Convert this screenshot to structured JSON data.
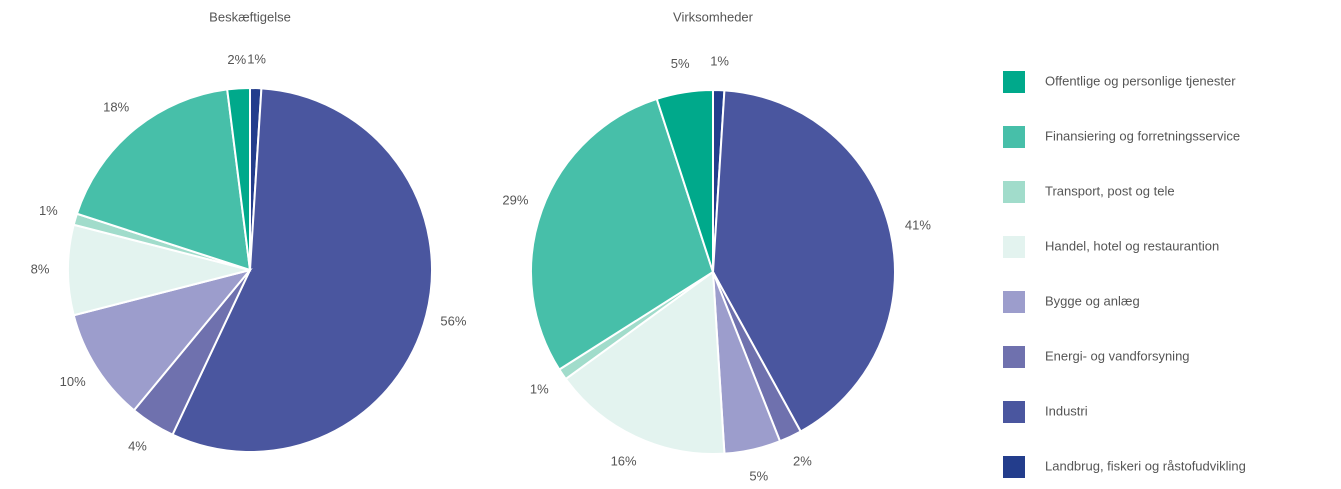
{
  "chart_data": {
    "type": "pie",
    "categories": [
      "Offentlige og personlige tjenester",
      "Finansiering og forretningsservice",
      "Transport, post og tele",
      "Handel, hotel og restaurantion",
      "Bygge og anlæg",
      "Energi- og vandforsyning",
      "Industri",
      "Landbrug, fiskeri og råstofudvikling"
    ],
    "colors": [
      "#00a98b",
      "#47bfa9",
      "#a1dccb",
      "#e3f3ef",
      "#9c9dcc",
      "#6f71ae",
      "#4a569f",
      "#233d8c"
    ],
    "series": [
      {
        "name": "Beskæftigelse",
        "values": [
          2,
          18,
          1,
          8,
          10,
          4,
          56,
          1
        ],
        "value_labels": [
          "2%",
          "18%",
          "1%",
          "8%",
          "10%",
          "4%",
          "56%",
          "1%"
        ]
      },
      {
        "name": "Virksomheder",
        "values": [
          5,
          29,
          1,
          16,
          5,
          2,
          41,
          1
        ],
        "value_labels": [
          "5%",
          "29%",
          "1%",
          "16%",
          "5%",
          "2%",
          "41%",
          "1%"
        ]
      }
    ]
  }
}
